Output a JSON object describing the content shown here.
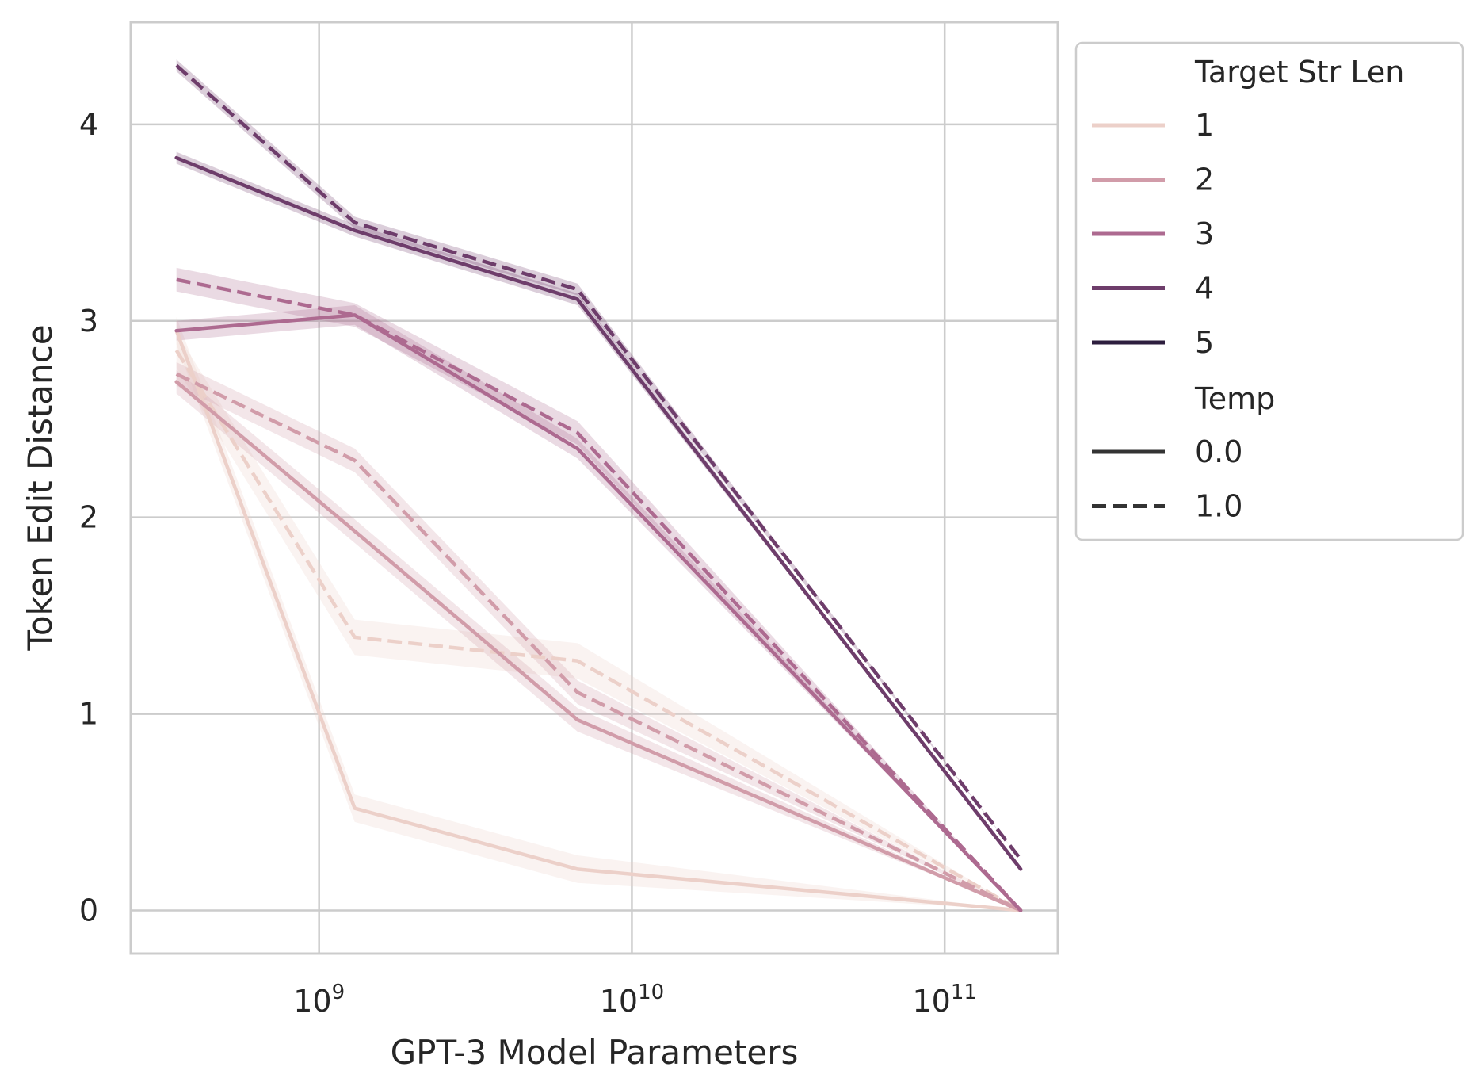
{
  "chart_data": {
    "type": "line",
    "xlabel": "GPT-3 Model Parameters",
    "ylabel": "Token Edit Distance",
    "x_scale": "log",
    "x": [
      350000000,
      1300000000,
      6700000000,
      175000000000
    ],
    "xlim": [
      250000000,
      230000000000
    ],
    "ylim": [
      -0.22,
      4.52
    ],
    "x_ticks": [
      {
        "value": 1000000000,
        "base": "10",
        "exp": "9"
      },
      {
        "value": 10000000000,
        "base": "10",
        "exp": "10"
      },
      {
        "value": 100000000000,
        "base": "10",
        "exp": "11"
      }
    ],
    "y_ticks": [
      {
        "value": 0,
        "label": "0"
      },
      {
        "value": 1,
        "label": "1"
      },
      {
        "value": 2,
        "label": "2"
      },
      {
        "value": 3,
        "label": "3"
      },
      {
        "value": 4,
        "label": "4"
      }
    ],
    "grid": true,
    "legend_position": "outside-right",
    "legend": {
      "hue_title": "Target Str Len",
      "hue_entries": [
        {
          "label": "1",
          "color": "#ecd0c9"
        },
        {
          "label": "2",
          "color": "#d19ca9"
        },
        {
          "label": "3",
          "color": "#ad6a90"
        },
        {
          "label": "4",
          "color": "#6e3d6b"
        },
        {
          "label": "5",
          "color": "#2d1e3e"
        }
      ],
      "style_title": "Temp",
      "style_entries": [
        {
          "label": "0.0",
          "dash": "solid"
        },
        {
          "label": "1.0",
          "dash": "dashed"
        }
      ]
    },
    "series": [
      {
        "len": "1",
        "temp": "0.0",
        "color": "#ecd0c9",
        "dash": "solid",
        "values": [
          2.95,
          0.52,
          0.21,
          0.0
        ],
        "band": 0.07
      },
      {
        "len": "1",
        "temp": "1.0",
        "color": "#ecd0c9",
        "dash": "dashed",
        "values": [
          2.85,
          1.39,
          1.27,
          0.0
        ],
        "band": 0.09
      },
      {
        "len": "2",
        "temp": "0.0",
        "color": "#d19ca9",
        "dash": "solid",
        "values": [
          2.69,
          1.93,
          0.97,
          0.0
        ],
        "band": 0.06
      },
      {
        "len": "2",
        "temp": "1.0",
        "color": "#d19ca9",
        "dash": "dashed",
        "values": [
          2.73,
          2.29,
          1.11,
          0.0
        ],
        "band": 0.06
      },
      {
        "len": "3",
        "temp": "0.0",
        "color": "#ad6a90",
        "dash": "solid",
        "values": [
          2.95,
          3.03,
          2.35,
          0.0
        ],
        "band": 0.05
      },
      {
        "len": "3",
        "temp": "1.0",
        "color": "#ad6a90",
        "dash": "dashed",
        "values": [
          3.21,
          3.03,
          2.43,
          0.0
        ],
        "band": 0.06
      },
      {
        "len": "4",
        "temp": "0.0",
        "color": "#6e3d6b",
        "dash": "solid",
        "values": [
          3.83,
          3.46,
          3.11,
          0.21
        ],
        "band": 0.03
      },
      {
        "len": "4",
        "temp": "1.0",
        "color": "#6e3d6b",
        "dash": "dashed",
        "values": [
          4.3,
          3.5,
          3.16,
          0.26
        ],
        "band": 0.03
      }
    ]
  }
}
